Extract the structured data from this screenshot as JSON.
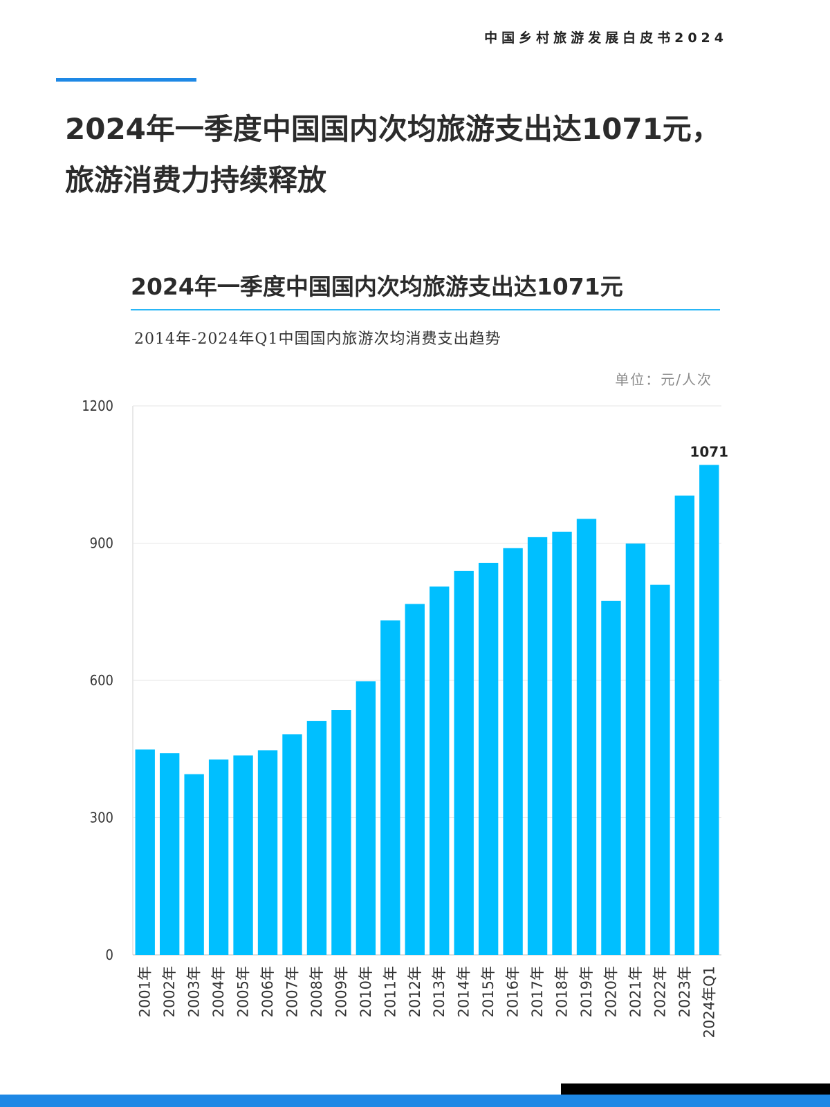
{
  "header": {
    "doc_title": "中国乡村旅游发展白皮书2024"
  },
  "page": {
    "title_line1": "2024年一季度中国国内次均旅游支出达1071元，",
    "title_line2": "旅游消费力持续释放"
  },
  "colors": {
    "accent": "#1e88e5",
    "bar": "#00bfff",
    "rule": "#29b6f6"
  },
  "chart_data": {
    "type": "bar",
    "title": "2024年一季度中国国内次均旅游支出达1071元",
    "subtitle": "2014年-2024年Q1中国国内旅游次均消费支出趋势",
    "unit": "单位：元/人次",
    "categories": [
      "2001年",
      "2002年",
      "2003年",
      "2004年",
      "2005年",
      "2006年",
      "2007年",
      "2008年",
      "2009年",
      "2010年",
      "2011年",
      "2012年",
      "2013年",
      "2014年",
      "2015年",
      "2016年",
      "2017年",
      "2018年",
      "2019年",
      "2020年",
      "2021年",
      "2022年",
      "2023年",
      "2024年Q1"
    ],
    "values": [
      449,
      441,
      395,
      427,
      436,
      447,
      482,
      511,
      535,
      598,
      731,
      767,
      805,
      839,
      857,
      889,
      913,
      925,
      953,
      774,
      899,
      809,
      1004,
      1071
    ],
    "yticks": [
      "0",
      "300",
      "600",
      "900",
      "1200"
    ],
    "ylim": [
      0,
      1200
    ],
    "data_labels": [
      {
        "category": "2024年Q1",
        "text": "1071"
      }
    ],
    "grid": true
  }
}
